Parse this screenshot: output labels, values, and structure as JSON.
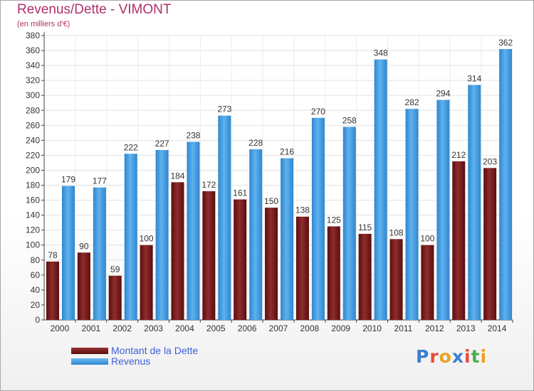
{
  "chart_data": {
    "type": "bar",
    "title": "Revenus/Dette - VIMONT",
    "subtitle": "(en milliers d'€)",
    "categories": [
      "2000",
      "2001",
      "2002",
      "2003",
      "2004",
      "2005",
      "2006",
      "2007",
      "2008",
      "2009",
      "2010",
      "2011",
      "2012",
      "2013",
      "2014"
    ],
    "series": [
      {
        "name": "Montant de la Dette",
        "color": "#7a1f1f",
        "values": [
          78,
          90,
          59,
          100,
          184,
          172,
          161,
          150,
          138,
          125,
          115,
          108,
          100,
          212,
          203
        ]
      },
      {
        "name": "Revenus",
        "color": "#4ea3e4",
        "values": [
          179,
          177,
          222,
          227,
          238,
          273,
          228,
          216,
          270,
          258,
          348,
          282,
          294,
          314,
          362
        ]
      }
    ],
    "ylim": [
      0,
      380
    ],
    "ytick_step": 20,
    "grid": true,
    "legend_position": "bottom-left"
  },
  "logo": {
    "text": "Proxiti",
    "letters": [
      {
        "ch": "P",
        "color": "#3a7fd0"
      },
      {
        "ch": "r",
        "color": "#e84c3c"
      },
      {
        "ch": "o",
        "color": "#f0a020"
      },
      {
        "ch": "x",
        "color": "#3a7fd0"
      },
      {
        "ch": "i",
        "color": "#e84c3c"
      },
      {
        "ch": "t",
        "color": "#4caf50"
      },
      {
        "ch": "i",
        "color": "#f0a020"
      }
    ]
  }
}
